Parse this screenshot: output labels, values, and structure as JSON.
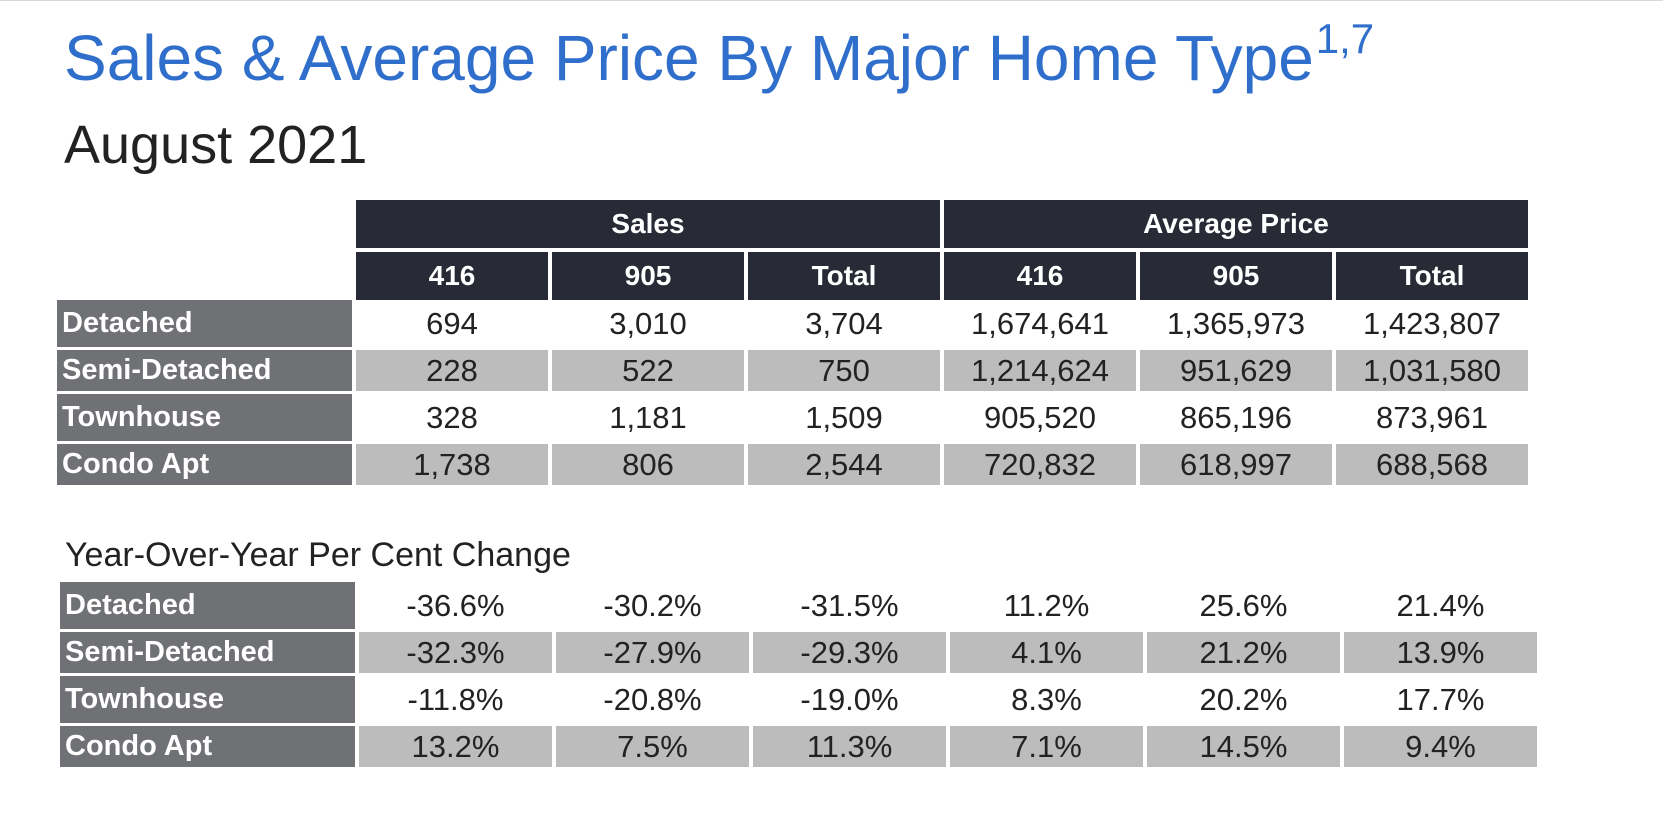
{
  "page": {
    "title": "Sales & Average Price By Major Home Type",
    "title_superscript": "1,7",
    "subtitle": "August 2021"
  },
  "main_table": {
    "group_headers": [
      "Sales",
      "Average Price"
    ],
    "sub_headers": [
      "416",
      "905",
      "Total",
      "416",
      "905",
      "Total"
    ],
    "rows": [
      {
        "label": "Detached",
        "values": [
          "694",
          "3,010",
          "3,704",
          "1,674,641",
          "1,365,973",
          "1,423,807"
        ]
      },
      {
        "label": "Semi-Detached",
        "values": [
          "228",
          "522",
          "750",
          "1,214,624",
          "951,629",
          "1,031,580"
        ]
      },
      {
        "label": "Townhouse",
        "values": [
          "328",
          "1,181",
          "1,509",
          "905,520",
          "865,196",
          "873,961"
        ]
      },
      {
        "label": "Condo Apt",
        "values": [
          "1,738",
          "806",
          "2,544",
          "720,832",
          "618,997",
          "688,568"
        ]
      }
    ]
  },
  "yoy_table": {
    "title": "Year-Over-Year Per Cent Change",
    "rows": [
      {
        "label": "Detached",
        "values": [
          "-36.6%",
          "-30.2%",
          "-31.5%",
          "11.2%",
          "25.6%",
          "21.4%"
        ]
      },
      {
        "label": "Semi-Detached",
        "values": [
          "-32.3%",
          "-27.9%",
          "-29.3%",
          "4.1%",
          "21.2%",
          "13.9%"
        ]
      },
      {
        "label": "Townhouse",
        "values": [
          "-11.8%",
          "-20.8%",
          "-19.0%",
          "8.3%",
          "20.2%",
          "17.7%"
        ]
      },
      {
        "label": "Condo Apt",
        "values": [
          "13.2%",
          "7.5%",
          "11.3%",
          "7.1%",
          "14.5%",
          "9.4%"
        ]
      }
    ]
  },
  "colors": {
    "title": "#2f6fcb",
    "header_bg": "#282b36",
    "row_label_bg": "#6f7175",
    "stripe_bg": "#bcbcbc"
  }
}
